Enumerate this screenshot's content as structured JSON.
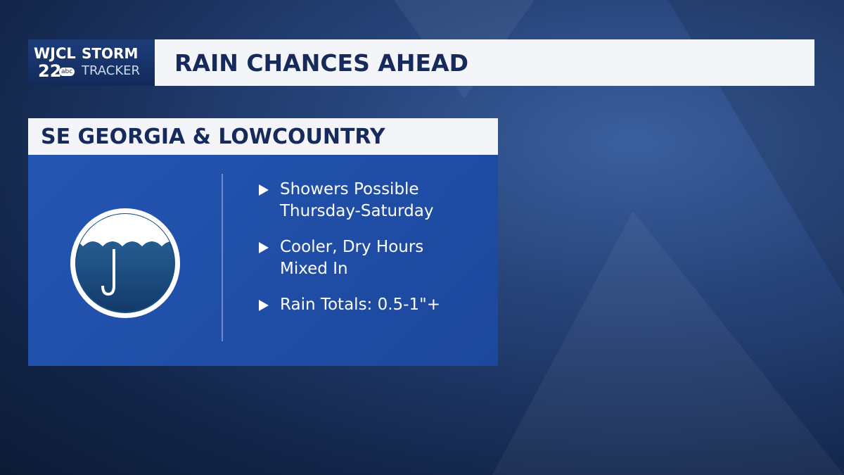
{
  "logo": {
    "station": "WJCL",
    "channel": "22",
    "network": "abc",
    "brand_top": "STORM",
    "brand_bottom": "TRACKER"
  },
  "header": {
    "title": "RAIN CHANCES AHEAD"
  },
  "panel": {
    "title": "SE GEORGIA & LOWCOUNTRY",
    "bullets": [
      [
        "Showers Possible",
        "Thursday-Saturday"
      ],
      [
        "Cooler, Dry Hours",
        "Mixed In"
      ],
      [
        "Rain Totals: 0.5-1\"+"
      ]
    ]
  }
}
